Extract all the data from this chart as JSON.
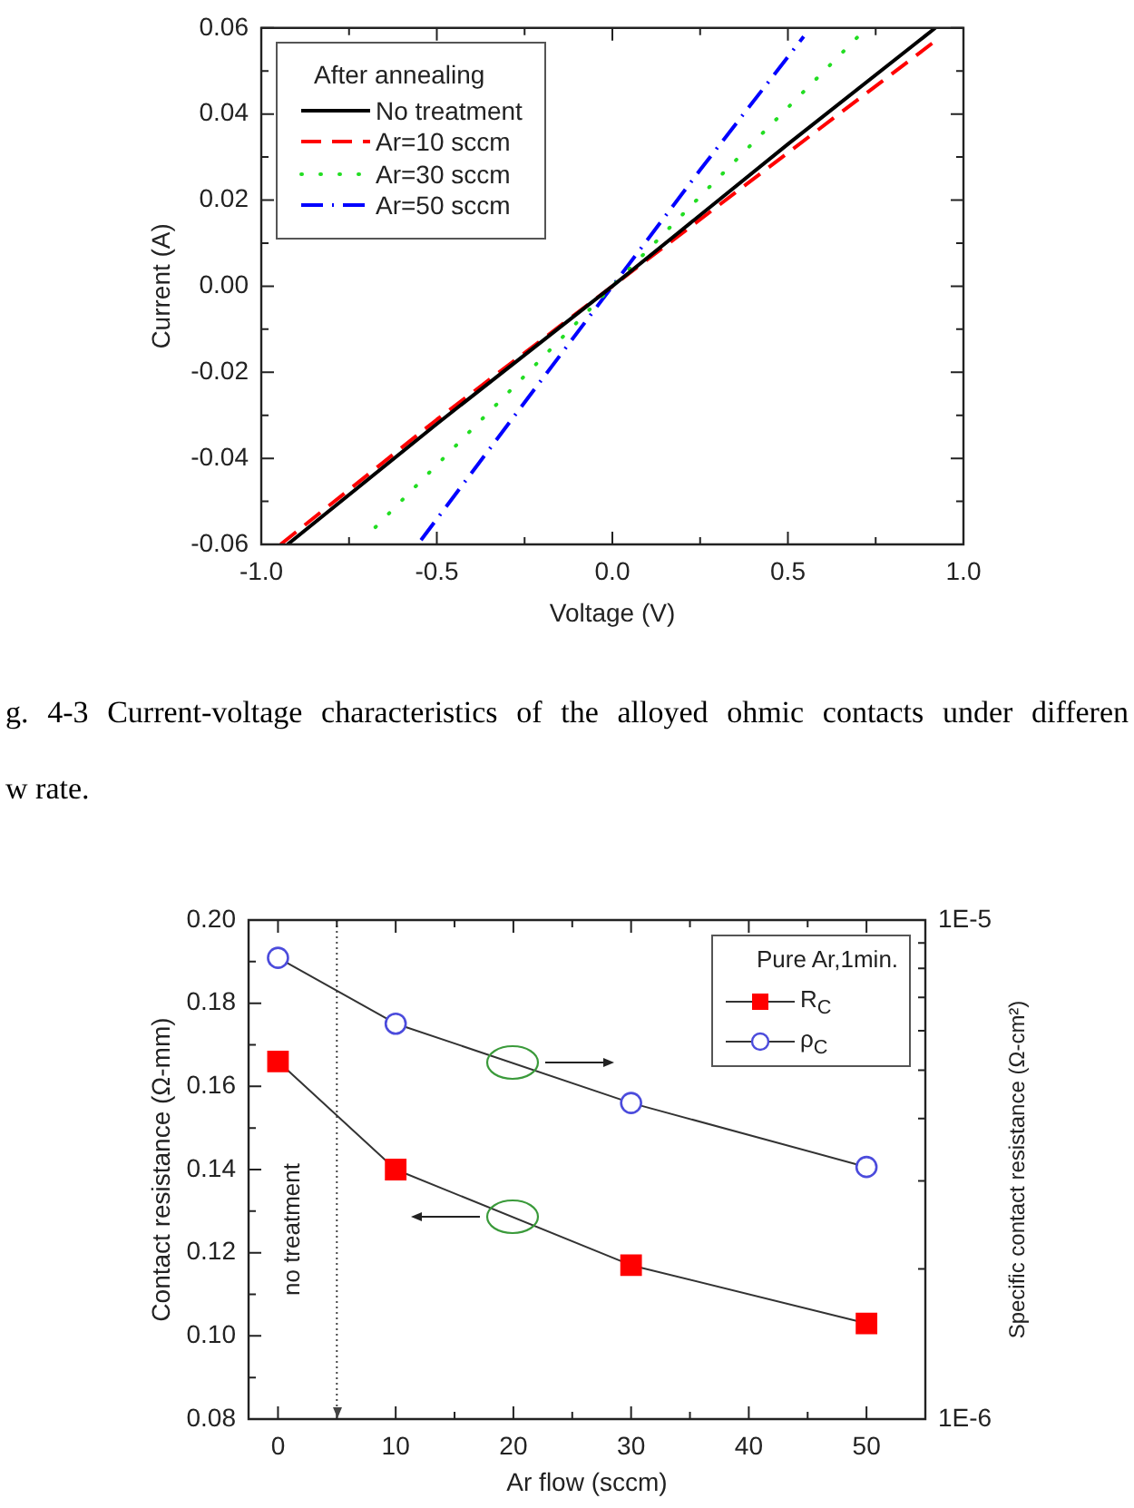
{
  "chart_data": [
    {
      "type": "line",
      "xlabel": "Voltage (V)",
      "ylabel": "Current (A)",
      "legend_title": "After annealing",
      "legend": "top left",
      "annotations": [
        "g. 4-3 Current-voltage characteristics of the alloyed ohmic contacts under differen",
        "w rate."
      ],
      "xlim": [
        -1,
        1
      ],
      "ylim": [
        -0.06,
        0.06
      ],
      "xticks": [
        {
          "value": -1,
          "label": "-1.0"
        },
        {
          "value": -0.75,
          "label": null
        },
        {
          "value": -0.5,
          "label": "-0.5"
        },
        {
          "value": -0.25,
          "label": null
        },
        {
          "value": 0,
          "label": "0.0"
        },
        {
          "value": 0.25,
          "label": null
        },
        {
          "value": 0.5,
          "label": "0.5"
        },
        {
          "value": 0.75,
          "label": null
        },
        {
          "value": 1,
          "label": "1.0"
        }
      ],
      "yticks": [
        -0.06,
        {
          "value": -0.05,
          "label": null
        },
        -0.04,
        {
          "value": -0.03,
          "label": null
        },
        -0.02,
        {
          "value": -0.01,
          "label": null
        },
        {
          "value": 0,
          "label": "0.00"
        },
        {
          "value": 0.01,
          "label": null
        },
        0.02,
        {
          "value": 0.03,
          "label": null
        },
        0.04,
        {
          "value": 0.05,
          "label": null
        },
        0.06
      ],
      "series": [
        {
          "name": "No treatment",
          "color": "#000000",
          "line_style": "solid",
          "x": [
            -0.925,
            -0.5,
            0,
            0.5,
            0.92
          ],
          "values": [
            -0.06,
            -0.032,
            0,
            0.033,
            0.06
          ]
        },
        {
          "name": "Ar=10 sccm",
          "color": "#ff0000",
          "line_style": "dashed",
          "x": [
            -0.945,
            -0.5,
            0,
            0.5,
            0.92
          ],
          "values": [
            -0.06,
            -0.031,
            0,
            0.031,
            0.057
          ]
        },
        {
          "name": "Ar=30 sccm",
          "color": "#22dd22",
          "line_style": "dotted",
          "x": [
            -0.675,
            -0.3,
            0,
            0.3,
            0.7
          ],
          "values": [
            -0.056,
            -0.025,
            0,
            0.025,
            0.058
          ]
        },
        {
          "name": "Ar=50 sccm",
          "color": "#0000ff",
          "line_style": "dashdot",
          "x": [
            -0.545,
            -0.25,
            0,
            0.25,
            0.545
          ],
          "values": [
            -0.059,
            -0.027,
            0,
            0.027,
            0.058
          ]
        }
      ]
    },
    {
      "type": "line",
      "xlabel": "Ar flow (sccm)",
      "ylabel": "Contact resistance (Ω-mm)",
      "y2label": "Specific contact resistance (Ω-cm²)",
      "legend_title": "Pure Ar,1min.",
      "legend": "top right",
      "log": "y2",
      "x": [
        0,
        10,
        30,
        50
      ],
      "xlim": [
        -2.5,
        55
      ],
      "xticks": [
        0,
        {
          "value": 5,
          "label": null
        },
        10,
        {
          "value": 15,
          "label": null
        },
        20,
        {
          "value": 25,
          "label": null
        },
        30,
        {
          "value": 35,
          "label": null
        },
        40,
        {
          "value": 45,
          "label": null
        },
        50
      ],
      "ylim": [
        0.08,
        0.2
      ],
      "yticks": [
        0.08,
        {
          "value": 0.09,
          "label": null
        },
        {
          "value": 0.1,
          "label": "0.10"
        },
        {
          "value": 0.11,
          "label": null
        },
        0.12,
        {
          "value": 0.13,
          "label": null
        },
        0.14,
        {
          "value": 0.15,
          "label": null
        },
        0.16,
        {
          "value": 0.17,
          "label": null
        },
        0.18,
        {
          "value": 0.19,
          "label": null
        },
        {
          "value": 0.2,
          "label": "0.20"
        }
      ],
      "y2lim": [
        1e-06,
        1e-05
      ],
      "y2ticks": [
        {
          "value": 1e-06,
          "label": "1E-6"
        },
        {
          "value": 2e-06,
          "label": null
        },
        {
          "value": 3e-06,
          "label": null
        },
        {
          "value": 4e-06,
          "label": null
        },
        {
          "value": 5e-06,
          "label": null
        },
        {
          "value": 6e-06,
          "label": null
        },
        {
          "value": 7e-06,
          "label": null
        },
        {
          "value": 8e-06,
          "label": null
        },
        {
          "value": 9e-06,
          "label": null
        },
        {
          "value": 1e-05,
          "label": "1E-5"
        }
      ],
      "ref_lines": [
        {
          "axis": "x",
          "value": 5,
          "label": "no treatment",
          "line_style": "dotted"
        }
      ],
      "series": [
        {
          "name": "R$_{C}$",
          "color": "#ff0000",
          "marker": "square",
          "values": [
            0.166,
            0.14,
            0.117,
            0.103
          ]
        },
        {
          "name": "ρ$_{C}$",
          "color": "#4b4bdc",
          "marker": "circle",
          "axis": "y2",
          "values": [
            8.4e-06,
            6.2e-06,
            4.3e-06,
            3.2e-06
          ]
        }
      ]
    }
  ]
}
